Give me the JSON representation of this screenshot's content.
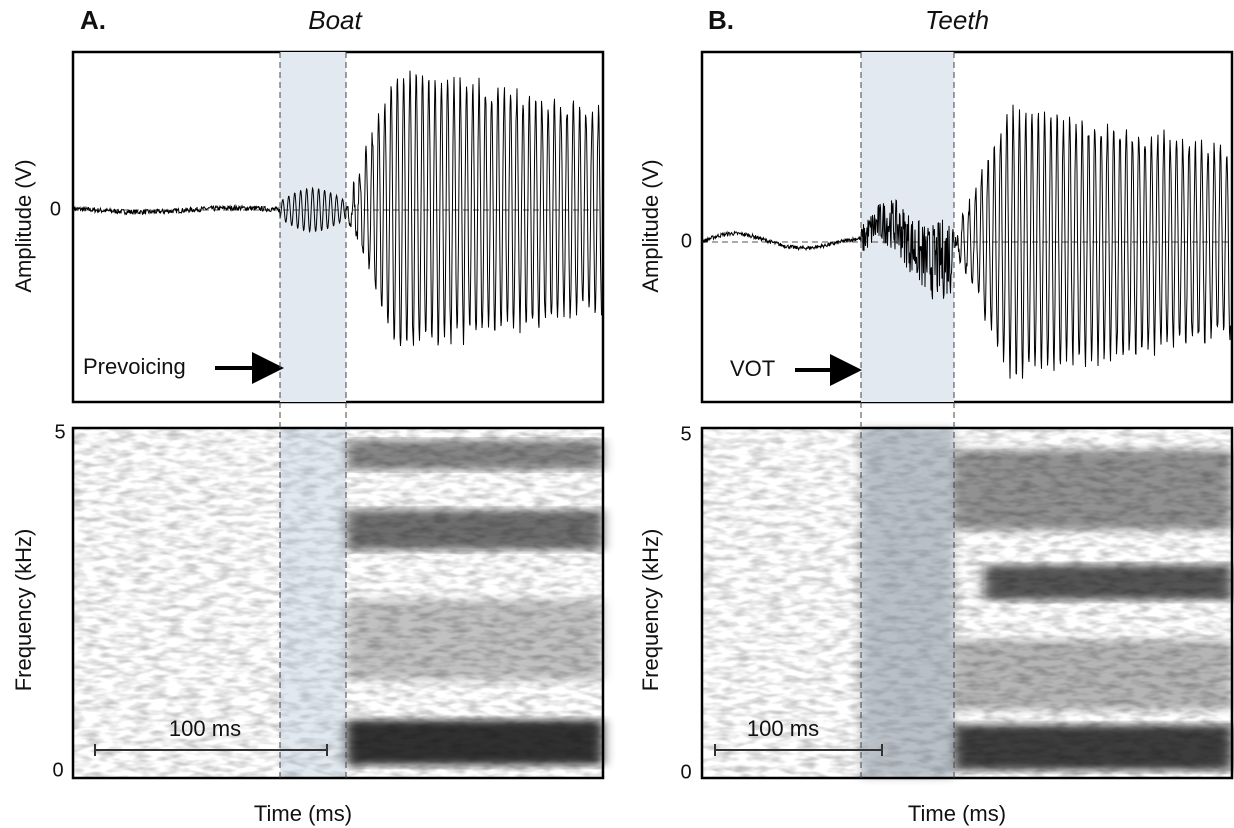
{
  "panels": [
    {
      "letter": "A.",
      "word": "Boat",
      "waveform": {
        "ylabel": "Amplitude (V)",
        "zero_label": "0",
        "annotation": "Prevoicing"
      },
      "spectrogram": {
        "ylabel": "Frequency (kHz)",
        "top_label": "5",
        "bottom_label": "0",
        "scale_label": "100 ms"
      },
      "xlabel": "Time (ms)"
    },
    {
      "letter": "B.",
      "word": "Teeth",
      "waveform": {
        "ylabel": "Amplitude (V)",
        "zero_label": "0",
        "annotation": "VOT"
      },
      "spectrogram": {
        "ylabel": "Frequency (kHz)",
        "top_label": "5",
        "bottom_label": "0",
        "scale_label": "100 ms"
      },
      "xlabel": "Time (ms)"
    }
  ]
}
